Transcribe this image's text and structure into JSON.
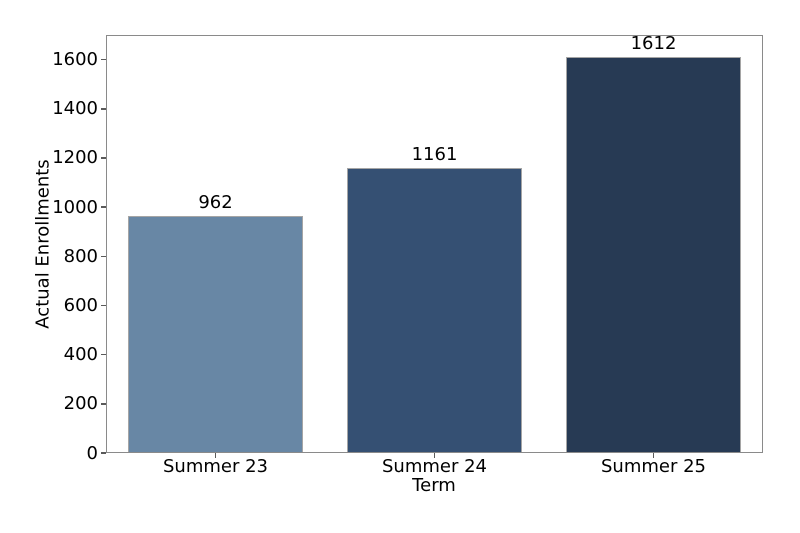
{
  "chart_data": {
    "type": "bar",
    "title": "",
    "xlabel": "Term",
    "ylabel": "Actual Enrollments",
    "categories": [
      "Summer 23",
      "Summer 24",
      "Summer 25"
    ],
    "values": [
      962,
      1161,
      1612
    ],
    "bar_value_labels": [
      "962",
      "1161",
      "1612"
    ],
    "bar_colors": [
      "#6887a5",
      "#355073",
      "#273a54"
    ],
    "ylim": [
      0,
      1700
    ],
    "yticks": [
      0,
      200,
      400,
      600,
      800,
      1000,
      1200,
      1400,
      1600
    ],
    "grid": false,
    "legend": "none",
    "colors": {
      "background": "#ffffff",
      "spine": "#8a8a8a",
      "tick": "#5a5a5a",
      "bar_edge": "#a5a5a5",
      "text": "#000000"
    }
  }
}
